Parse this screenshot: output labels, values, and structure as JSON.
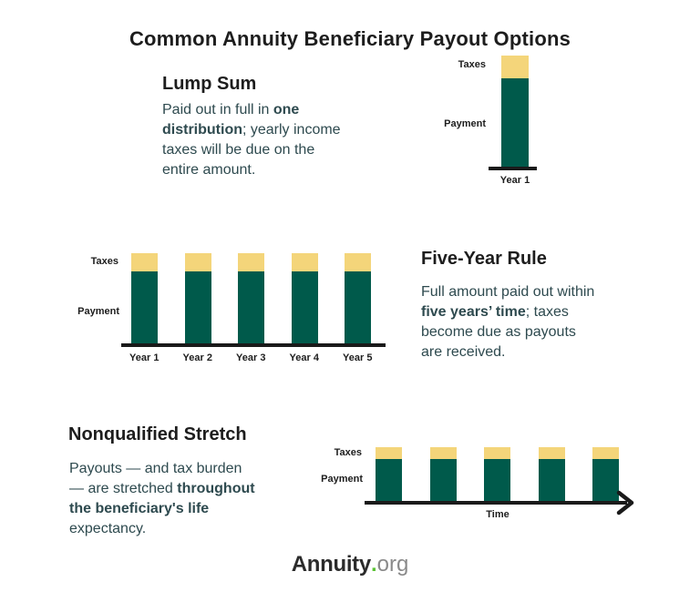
{
  "title": "Common Annuity Beneficiary Payout Options",
  "sections": [
    {
      "heading": "Lump Sum",
      "body": [
        {
          "t": "Paid out in full in "
        },
        {
          "t": "one",
          "b": true
        },
        {
          "br": true
        },
        {
          "t": "distribution",
          "b": true
        },
        {
          "t": "; yearly income"
        },
        {
          "br": true
        },
        {
          "t": "taxes will be due on the"
        },
        {
          "br": true
        },
        {
          "t": "entire amount."
        }
      ]
    },
    {
      "heading": "Five-Year Rule",
      "body": [
        {
          "t": "Full amount paid out within"
        },
        {
          "br": true
        },
        {
          "t": "five years’ time",
          "b": true
        },
        {
          "t": "; taxes"
        },
        {
          "br": true
        },
        {
          "t": "become due as payouts"
        },
        {
          "br": true
        },
        {
          "t": "are received."
        }
      ]
    },
    {
      "heading": "Nonqualified Stretch",
      "body": [
        {
          "t": "Payouts — and tax burden"
        },
        {
          "br": true
        },
        {
          "t": "— are stretched "
        },
        {
          "t": "throughout",
          "b": true
        },
        {
          "br": true
        },
        {
          "t": "the beneficiary's life",
          "b": true
        },
        {
          "br": true
        },
        {
          "t": "expectancy."
        }
      ]
    }
  ],
  "footer": {
    "brand": "Annuity",
    "dot": ".",
    "tld": "org"
  },
  "colors": {
    "payment_green": "#005A4B",
    "taxes_yellow": "#F4D57A",
    "heading_text": "#1D1D1D",
    "body_text": "#2E4A4F",
    "axis_black": "#1A1A1A",
    "logo_dot_green": "#5BC236",
    "logo_org_gray": "#8A8A8A"
  },
  "chart_data": [
    {
      "id": "lump-sum-chart",
      "type": "bar",
      "stacked": true,
      "categories": [
        "Year 1"
      ],
      "series": [
        {
          "name": "Payment",
          "color": "#005A4B",
          "values": [
            97
          ]
        },
        {
          "name": "Taxes",
          "color": "#F4D57A",
          "values": [
            25
          ]
        }
      ],
      "xlabel": "",
      "ylabel": "",
      "value_unit": "relative bar height (no numeric axis shown)",
      "note": "Single tall bar: one full payment in Year 1 with taxes block on top"
    },
    {
      "id": "five-year-rule-chart",
      "type": "bar",
      "stacked": true,
      "categories": [
        "Year 1",
        "Year 2",
        "Year 3",
        "Year 4",
        "Year 5"
      ],
      "series": [
        {
          "name": "Payment",
          "color": "#005A4B",
          "values": [
            79,
            79,
            79,
            79,
            79
          ]
        },
        {
          "name": "Taxes",
          "color": "#F4D57A",
          "values": [
            20,
            20,
            20,
            20,
            20
          ]
        }
      ],
      "xlabel": "",
      "ylabel": "",
      "value_unit": "relative bar height (no numeric axis shown)",
      "note": "Five equal bars: equal payments with taxes block on top each year"
    },
    {
      "id": "nonqualified-stretch-chart",
      "type": "bar",
      "stacked": true,
      "categories": [
        "",
        "",
        "",
        "",
        ""
      ],
      "series": [
        {
          "name": "Payment",
          "color": "#005A4B",
          "values": [
            46,
            46,
            46,
            46,
            46
          ]
        },
        {
          "name": "Taxes",
          "color": "#F4D57A",
          "values": [
            13,
            13,
            13,
            13,
            13
          ]
        }
      ],
      "xlabel": "Time",
      "ylabel": "",
      "value_unit": "relative bar height (no numeric axis shown)",
      "note": "Five short equal bars along an arrowed Time axis"
    }
  ]
}
